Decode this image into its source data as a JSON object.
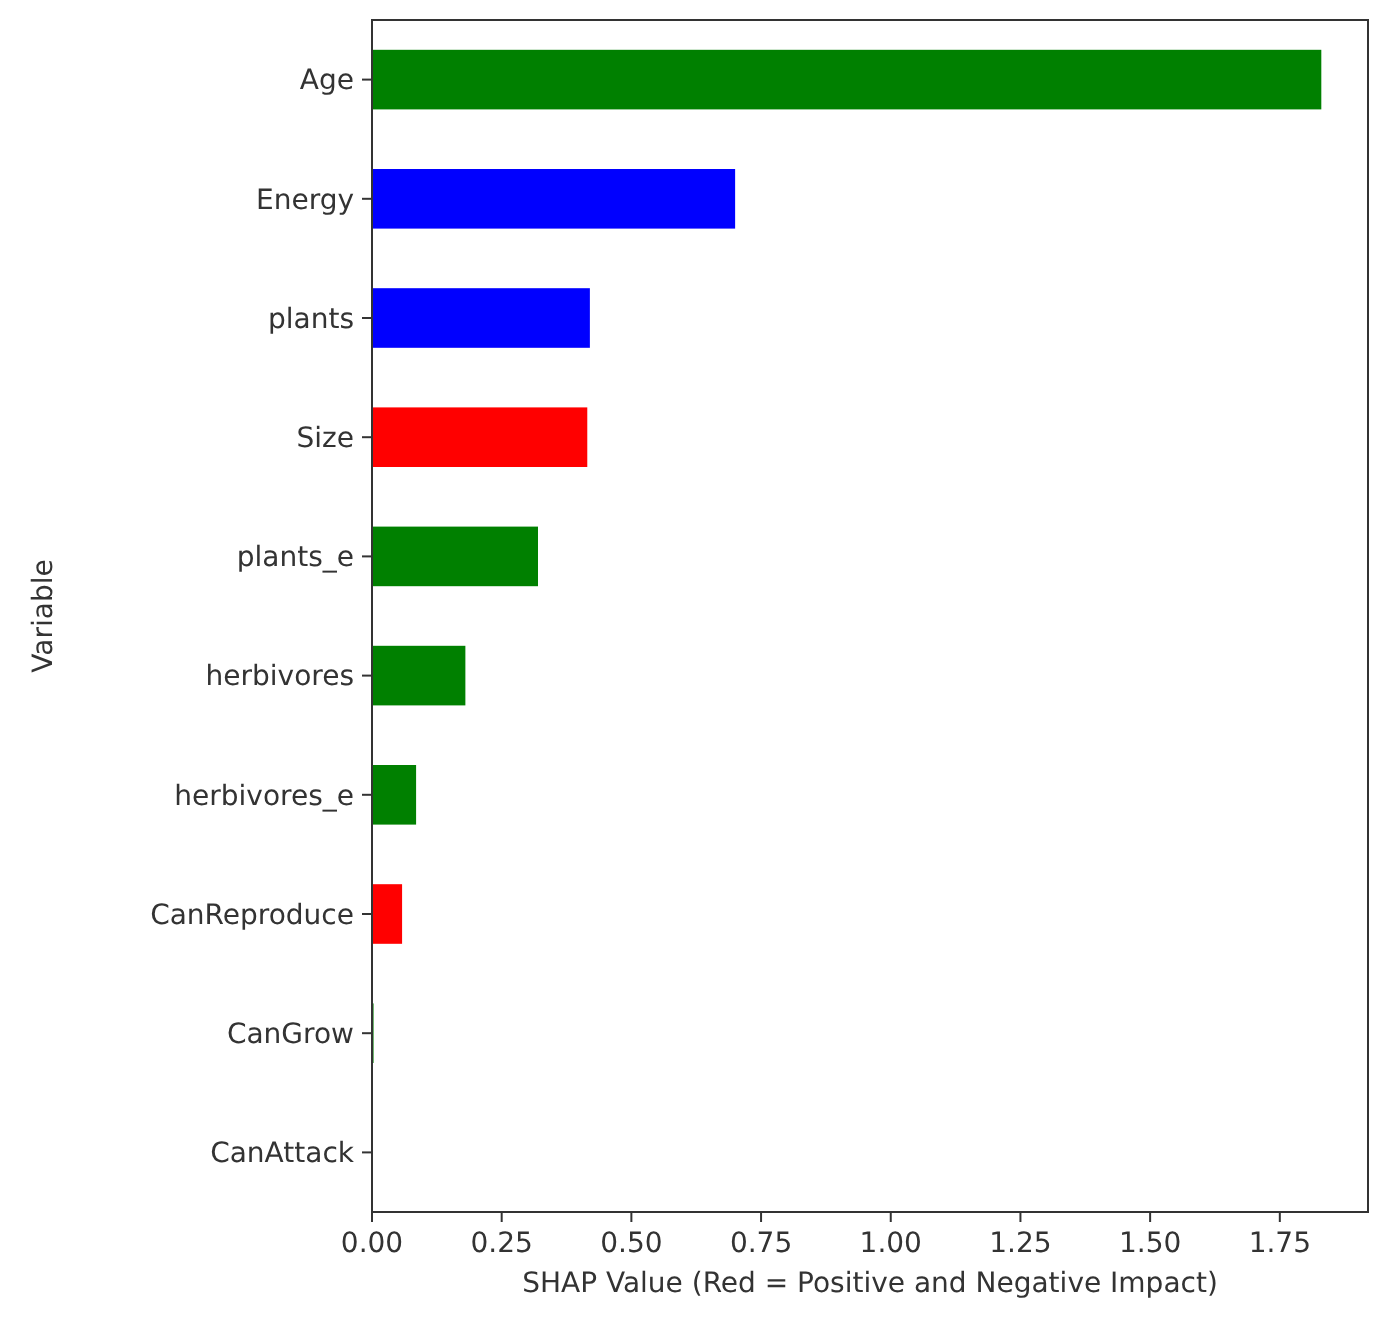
{
  "chart_data": {
    "type": "bar",
    "orientation": "horizontal",
    "xlabel": "SHAP Value (Red = Positive and Negative Impact)",
    "ylabel": "Variable",
    "categories": [
      "Age",
      "Energy",
      "plants",
      "Size",
      "plants_e",
      "herbivores",
      "herbivores_e",
      "CanReproduce",
      "CanGrow",
      "CanAttack"
    ],
    "values": [
      1.83,
      0.7,
      0.42,
      0.415,
      0.32,
      0.18,
      0.085,
      0.058,
      0.003,
      0
    ],
    "colors": [
      "#008000",
      "#0000ff",
      "#0000ff",
      "#ff0000",
      "#008000",
      "#008000",
      "#008000",
      "#ff0000",
      "#008000",
      "#008000"
    ],
    "xlim": [
      0,
      1.92
    ],
    "xticks": [
      {
        "value": 0,
        "label": "0.00"
      },
      {
        "value": 0.25,
        "label": "0.25"
      },
      {
        "value": 0.5,
        "label": "0.50"
      },
      {
        "value": 0.75,
        "label": "0.75"
      },
      {
        "value": 1,
        "label": "1.00"
      },
      {
        "value": 1.25,
        "label": "1.25"
      },
      {
        "value": 1.5,
        "label": "1.50"
      },
      {
        "value": 1.75,
        "label": "1.75"
      }
    ],
    "grid": false
  }
}
